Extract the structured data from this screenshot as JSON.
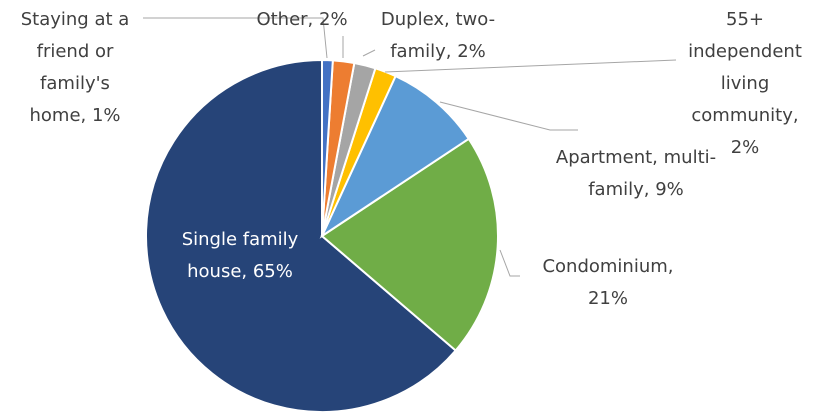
{
  "chart_data": {
    "type": "pie",
    "labels": [
      "Staying at a friend or family's home, 1%",
      "Other, 2%",
      "Duplex, two-family, 2%",
      "55+ independent living community, 2%",
      "Apartment, multi-family, 9%",
      "Condominium, 21%",
      "Single family house, 65%"
    ],
    "values": [
      1,
      2,
      2,
      2,
      9,
      21,
      65
    ],
    "colors": [
      "#4472c4",
      "#ed7d31",
      "#a5a5a5",
      "#ffc000",
      "#5b9bd5",
      "#70ad47",
      "#264478"
    ]
  }
}
